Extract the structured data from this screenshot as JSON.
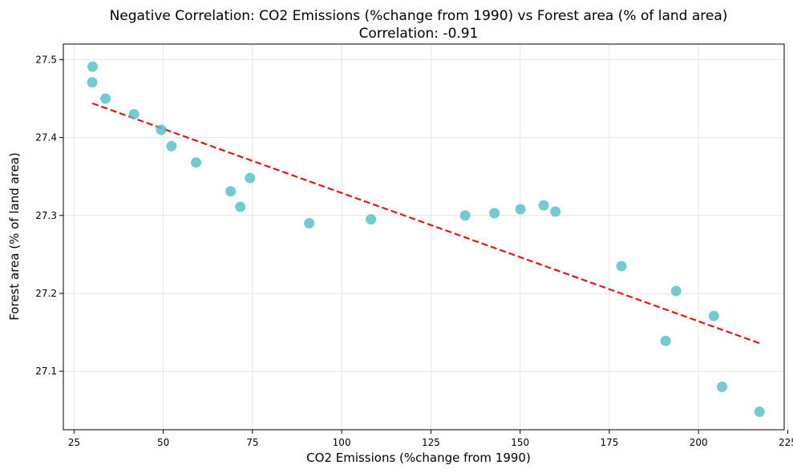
{
  "chart_data": {
    "type": "scatter",
    "title": "Negative Correlation: CO2 Emissions (%change from 1990) vs Forest area (% of land area)",
    "subtitle": "Correlation: -0.91",
    "xlabel": "CO2 Emissions (%change from 1990)",
    "ylabel": "Forest area (% of land area)",
    "xlim": [
      22,
      224
    ],
    "ylim": [
      27.025,
      27.52
    ],
    "xticks": [
      25,
      50,
      75,
      100,
      125,
      150,
      175,
      200,
      225
    ],
    "xtick_labels": [
      "25",
      "50",
      "75",
      "100",
      "125",
      "150",
      "175",
      "200",
      "225"
    ],
    "yticks": [
      27.1,
      27.2,
      27.3,
      27.4,
      27.5
    ],
    "ytick_labels": [
      "27.1",
      "27.2",
      "27.3",
      "27.4",
      "27.5"
    ],
    "grid": true,
    "points": [
      {
        "x": 30.2,
        "y": 27.491
      },
      {
        "x": 30.1,
        "y": 27.471
      },
      {
        "x": 33.8,
        "y": 27.45
      },
      {
        "x": 41.8,
        "y": 27.43
      },
      {
        "x": 49.4,
        "y": 27.41
      },
      {
        "x": 52.3,
        "y": 27.389
      },
      {
        "x": 59.2,
        "y": 27.368
      },
      {
        "x": 68.9,
        "y": 27.331
      },
      {
        "x": 71.6,
        "y": 27.311
      },
      {
        "x": 74.3,
        "y": 27.348
      },
      {
        "x": 90.9,
        "y": 27.29
      },
      {
        "x": 108.2,
        "y": 27.295
      },
      {
        "x": 134.6,
        "y": 27.3
      },
      {
        "x": 142.8,
        "y": 27.303
      },
      {
        "x": 150.1,
        "y": 27.308
      },
      {
        "x": 156.6,
        "y": 27.313
      },
      {
        "x": 159.9,
        "y": 27.305
      },
      {
        "x": 178.4,
        "y": 27.235
      },
      {
        "x": 190.8,
        "y": 27.139
      },
      {
        "x": 193.7,
        "y": 27.203
      },
      {
        "x": 204.3,
        "y": 27.171
      },
      {
        "x": 206.6,
        "y": 27.08
      },
      {
        "x": 217.1,
        "y": 27.048
      }
    ],
    "trendline": {
      "x": [
        30.1,
        217.1
      ],
      "y": [
        27.444,
        27.136
      ]
    },
    "colors": {
      "points": "#4fbec6",
      "trendline": "#ee1111",
      "grid": "#e6e6e6",
      "axes": "#000000"
    }
  }
}
